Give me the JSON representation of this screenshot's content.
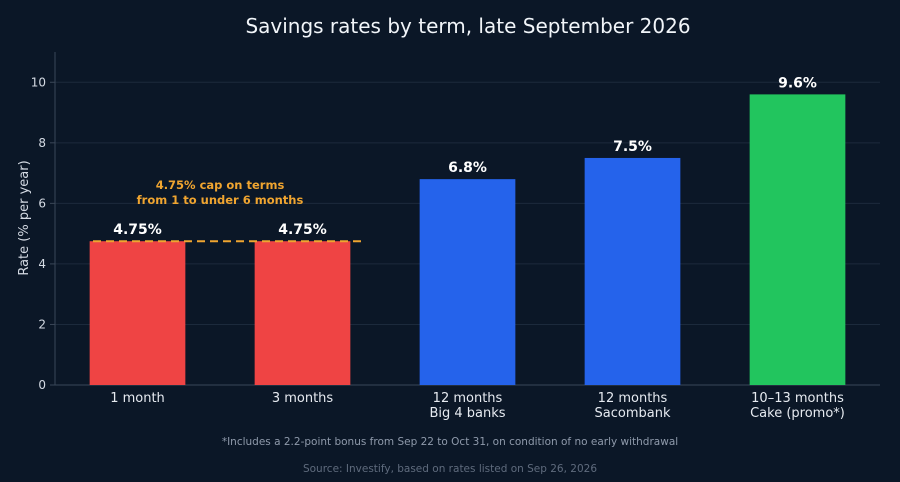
{
  "chart_data": {
    "type": "bar",
    "title": "Savings rates by term, late September 2026",
    "ylabel": "Rate (% per year)",
    "xlabel": "",
    "ylim": [
      0,
      11
    ],
    "yticks": [
      0,
      2,
      4,
      6,
      8,
      10
    ],
    "grid": true,
    "categories": [
      [
        "1 month"
      ],
      [
        "3 months"
      ],
      [
        "12 months",
        "Big 4 banks"
      ],
      [
        "12 months",
        "Sacombank"
      ],
      [
        "10–13 months",
        "Cake (promo*)"
      ]
    ],
    "values": [
      4.75,
      4.75,
      6.8,
      7.5,
      9.6
    ],
    "data_labels": [
      "4.75%",
      "4.75%",
      "6.8%",
      "7.5%",
      "9.6%"
    ],
    "colors": [
      "#ef4444",
      "#ef4444",
      "#2563eb",
      "#2563eb",
      "#22c55e"
    ],
    "reference_line": {
      "value": 4.75,
      "color": "#f0a530",
      "style": "dashed",
      "spans_categories": [
        0,
        1
      ],
      "annotation": [
        "4.75% cap on terms",
        "from 1 to under 6 months"
      ]
    },
    "footnote": "*Includes a 2.2-point bonus from Sep 22 to Oct 31, on condition of no early withdrawal",
    "source": "Source: Investify, based on rates listed on Sep 26, 2026"
  },
  "colors": {
    "background": "#0b1727",
    "gridline": "#1c2a3c",
    "axis": "#3a4758"
  }
}
